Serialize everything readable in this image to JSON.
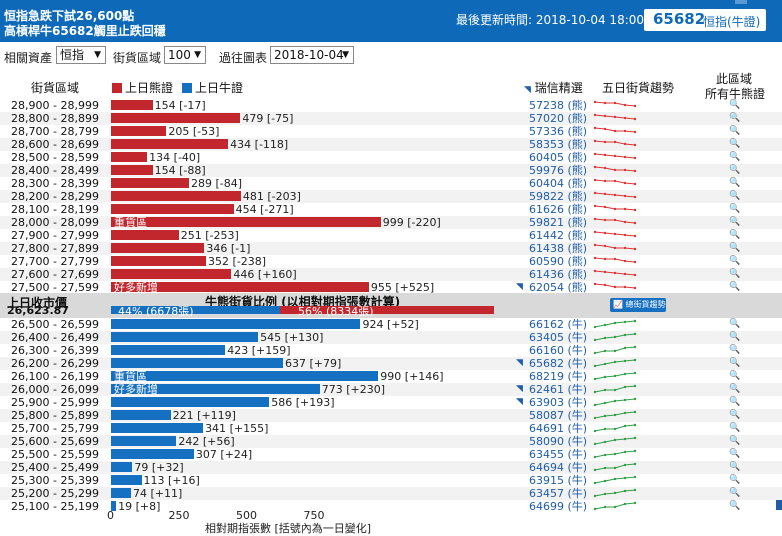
{
  "header": {
    "title_line1": "恒指急跌下試26,600點",
    "title_line2": "高槓桿牛65682觸里止跌回穩",
    "last_updated_label": "最後更新時間:",
    "last_updated": "2018-10-04 18:00",
    "warrant_code": "65682",
    "warrant_name": "恒指(牛證)"
  },
  "filters": {
    "asset_label": "相關資產",
    "asset_value": "恒指",
    "zone_label": "街貨區域",
    "zone_value": "100",
    "past_label": "過往圖表",
    "past_value": "2018-10-04"
  },
  "columns": {
    "zone": "街貨區域",
    "bear_legend": "上日熊證",
    "bull_legend": "上日牛證",
    "featured": "瑞信精選",
    "trend": "五日街貨趨勢",
    "all_line1": "此區域",
    "all_line2": "所有牛熊證"
  },
  "bear_rows": [
    {
      "range": "28,900 - 28,999",
      "value": 154,
      "change": "[-17]",
      "warrant": "57238 (熊)",
      "flag": ""
    },
    {
      "range": "28,800 - 28,899",
      "value": 479,
      "change": "[-75]",
      "warrant": "57020 (熊)",
      "flag": ""
    },
    {
      "range": "28,700 - 28,799",
      "value": 205,
      "change": "[-53]",
      "warrant": "57336 (熊)",
      "flag": ""
    },
    {
      "range": "28,600 - 28,699",
      "value": 434,
      "change": "[-118]",
      "warrant": "58353 (熊)",
      "flag": ""
    },
    {
      "range": "28,500 - 28,599",
      "value": 134,
      "change": "[-40]",
      "warrant": "60405 (熊)",
      "flag": ""
    },
    {
      "range": "28,400 - 28,499",
      "value": 154,
      "change": "[-88]",
      "warrant": "59976 (熊)",
      "flag": ""
    },
    {
      "range": "28,300 - 28,399",
      "value": 289,
      "change": "[-84]",
      "warrant": "60404 (熊)",
      "flag": ""
    },
    {
      "range": "28,200 - 28,299",
      "value": 481,
      "change": "[-203]",
      "warrant": "59822 (熊)",
      "flag": ""
    },
    {
      "range": "28,100 - 28,199",
      "value": 454,
      "change": "[-271]",
      "warrant": "61626 (熊)",
      "flag": ""
    },
    {
      "range": "28,000 - 28,099",
      "value": 999,
      "change": "[-220]",
      "warrant": "59821 (熊)",
      "flag": "重貨區"
    },
    {
      "range": "27,900 - 27,999",
      "value": 251,
      "change": "[-253]",
      "warrant": "61442 (熊)",
      "flag": ""
    },
    {
      "range": "27,800 - 27,899",
      "value": 346,
      "change": "[-1]",
      "warrant": "61438 (熊)",
      "flag": ""
    },
    {
      "range": "27,700 - 27,799",
      "value": 352,
      "change": "[-238]",
      "warrant": "60590 (熊)",
      "flag": ""
    },
    {
      "range": "27,600 - 27,699",
      "value": 446,
      "change": "[+160]",
      "warrant": "61436 (熊)",
      "flag": ""
    },
    {
      "range": "27,500 - 27,599",
      "value": 955,
      "change": "[+525]",
      "warrant": "62054 (熊)",
      "flag": "好多新增"
    }
  ],
  "middle": {
    "close_label": "上日收市價",
    "close_price": "26,623.87",
    "ratio_title": "牛熊街貨比例 (以相對期指張數計算)",
    "bull_ratio_text": "44% (6678張)",
    "bear_ratio_text": "56% (8334張)",
    "bull_ratio": 0.44,
    "trend_button": "總街貨趨勢"
  },
  "bull_rows": [
    {
      "range": "26,500 - 26,599",
      "value": 924,
      "change": "[+52]",
      "warrant": "66162 (牛)",
      "flag": ""
    },
    {
      "range": "26,400 - 26,499",
      "value": 545,
      "change": "[+130]",
      "warrant": "63405 (牛)",
      "flag": ""
    },
    {
      "range": "26,300 - 26,399",
      "value": 423,
      "change": "[+159]",
      "warrant": "66160 (牛)",
      "flag": ""
    },
    {
      "range": "26,200 - 26,299",
      "value": 637,
      "change": "[+79]",
      "warrant": "65682 (牛)",
      "flag": ""
    },
    {
      "range": "26,100 - 26,199",
      "value": 990,
      "change": "[+146]",
      "warrant": "68219 (牛)",
      "flag": "重貨區"
    },
    {
      "range": "26,000 - 26,099",
      "value": 773,
      "change": "[+230]",
      "warrant": "62461 (牛)",
      "flag": "好多新增"
    },
    {
      "range": "25,900 - 25,999",
      "value": 586,
      "change": "[+193]",
      "warrant": "63903 (牛)",
      "flag": ""
    },
    {
      "range": "25,800 - 25,899",
      "value": 221,
      "change": "[+119]",
      "warrant": "58087 (牛)",
      "flag": ""
    },
    {
      "range": "25,700 - 25,799",
      "value": 341,
      "change": "[+155]",
      "warrant": "64691 (牛)",
      "flag": ""
    },
    {
      "range": "25,600 - 25,699",
      "value": 242,
      "change": "[+56]",
      "warrant": "58090 (牛)",
      "flag": ""
    },
    {
      "range": "25,500 - 25,599",
      "value": 307,
      "change": "[+24]",
      "warrant": "63455 (牛)",
      "flag": ""
    },
    {
      "range": "25,400 - 25,499",
      "value": 79,
      "change": "[+32]",
      "warrant": "64694 (牛)",
      "flag": ""
    },
    {
      "range": "25,300 - 25,399",
      "value": 113,
      "change": "[+16]",
      "warrant": "63915 (牛)",
      "flag": ""
    },
    {
      "range": "25,200 - 25,299",
      "value": 74,
      "change": "[+11]",
      "warrant": "63457 (牛)",
      "flag": ""
    },
    {
      "range": "25,100 - 25,199",
      "value": 19,
      "change": "[+8]",
      "warrant": "64699 (牛)",
      "flag": ""
    }
  ],
  "axis": {
    "ticks": [
      "0",
      "250",
      "500",
      "750"
    ],
    "title": "相對期指張數 [括號內為一日變化]"
  },
  "colors": {
    "header": "#0e6ab8",
    "bear": "#c1272d",
    "bull": "#1670c2"
  }
}
